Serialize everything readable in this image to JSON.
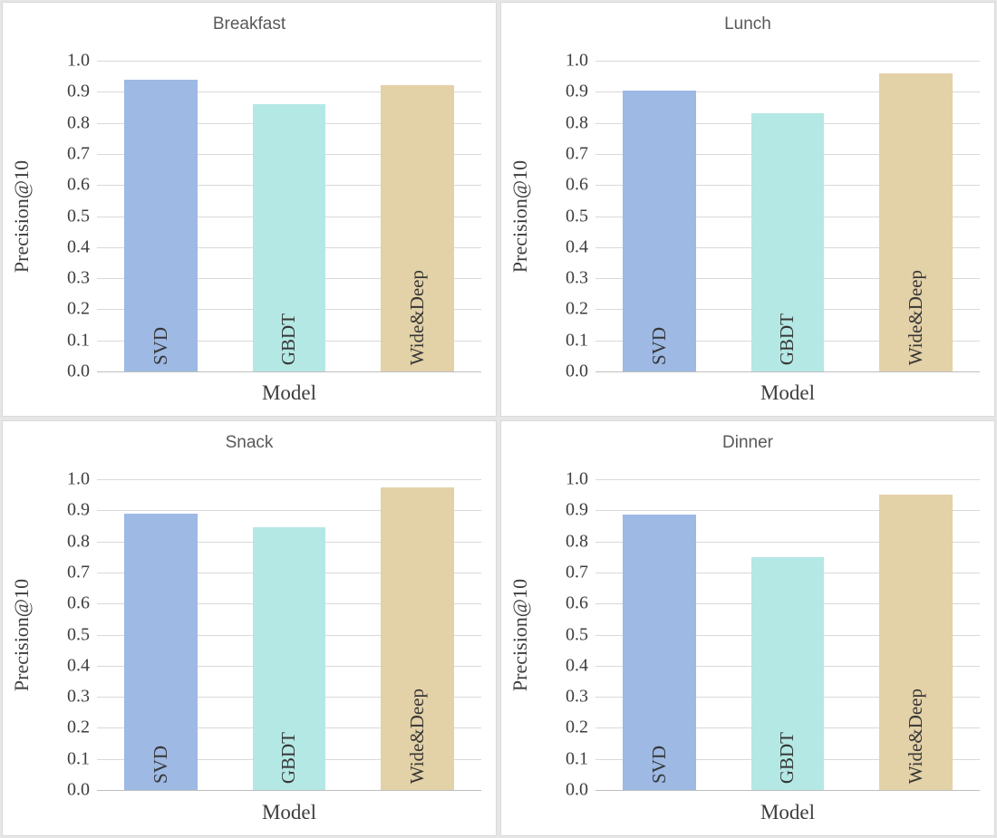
{
  "colors": {
    "bar_series": [
      "#9db9e4",
      "#b4e8e4",
      "#e3d1a7"
    ],
    "gridline": "#d9d9d9",
    "axis_line": "#bfbfbf",
    "title_text": "#595959",
    "axis_text": "#3d3d3d",
    "panel_border": "#d9d9d9",
    "background_gap": "#e6e6e6"
  },
  "chart_data": [
    {
      "type": "bar",
      "title": "Breakfast",
      "xlabel": "Model",
      "ylabel": "Precision@10",
      "categories": [
        "SVD",
        "GBDT",
        "Wide&Deep"
      ],
      "values": [
        0.94,
        0.86,
        0.92
      ],
      "ylim": [
        0.0,
        1.0
      ],
      "ytick_step": 0.1,
      "grid": "on",
      "legend": "none"
    },
    {
      "type": "bar",
      "title": "Lunch",
      "xlabel": "Model",
      "ylabel": "Precision@10",
      "categories": [
        "SVD",
        "GBDT",
        "Wide&Deep"
      ],
      "values": [
        0.905,
        0.83,
        0.96
      ],
      "ylim": [
        0.0,
        1.0
      ],
      "ytick_step": 0.1,
      "grid": "on",
      "legend": "none"
    },
    {
      "type": "bar",
      "title": "Snack",
      "xlabel": "Model",
      "ylabel": "Precision@10",
      "categories": [
        "SVD",
        "GBDT",
        "Wide&Deep"
      ],
      "values": [
        0.89,
        0.845,
        0.975
      ],
      "ylim": [
        0.0,
        1.0
      ],
      "ytick_step": 0.1,
      "grid": "on",
      "legend": "none"
    },
    {
      "type": "bar",
      "title": "Dinner",
      "xlabel": "Model",
      "ylabel": "Precision@10",
      "categories": [
        "SVD",
        "GBDT",
        "Wide&Deep"
      ],
      "values": [
        0.885,
        0.75,
        0.95
      ],
      "ylim": [
        0.0,
        1.0
      ],
      "ytick_step": 0.1,
      "grid": "on",
      "legend": "none"
    }
  ]
}
